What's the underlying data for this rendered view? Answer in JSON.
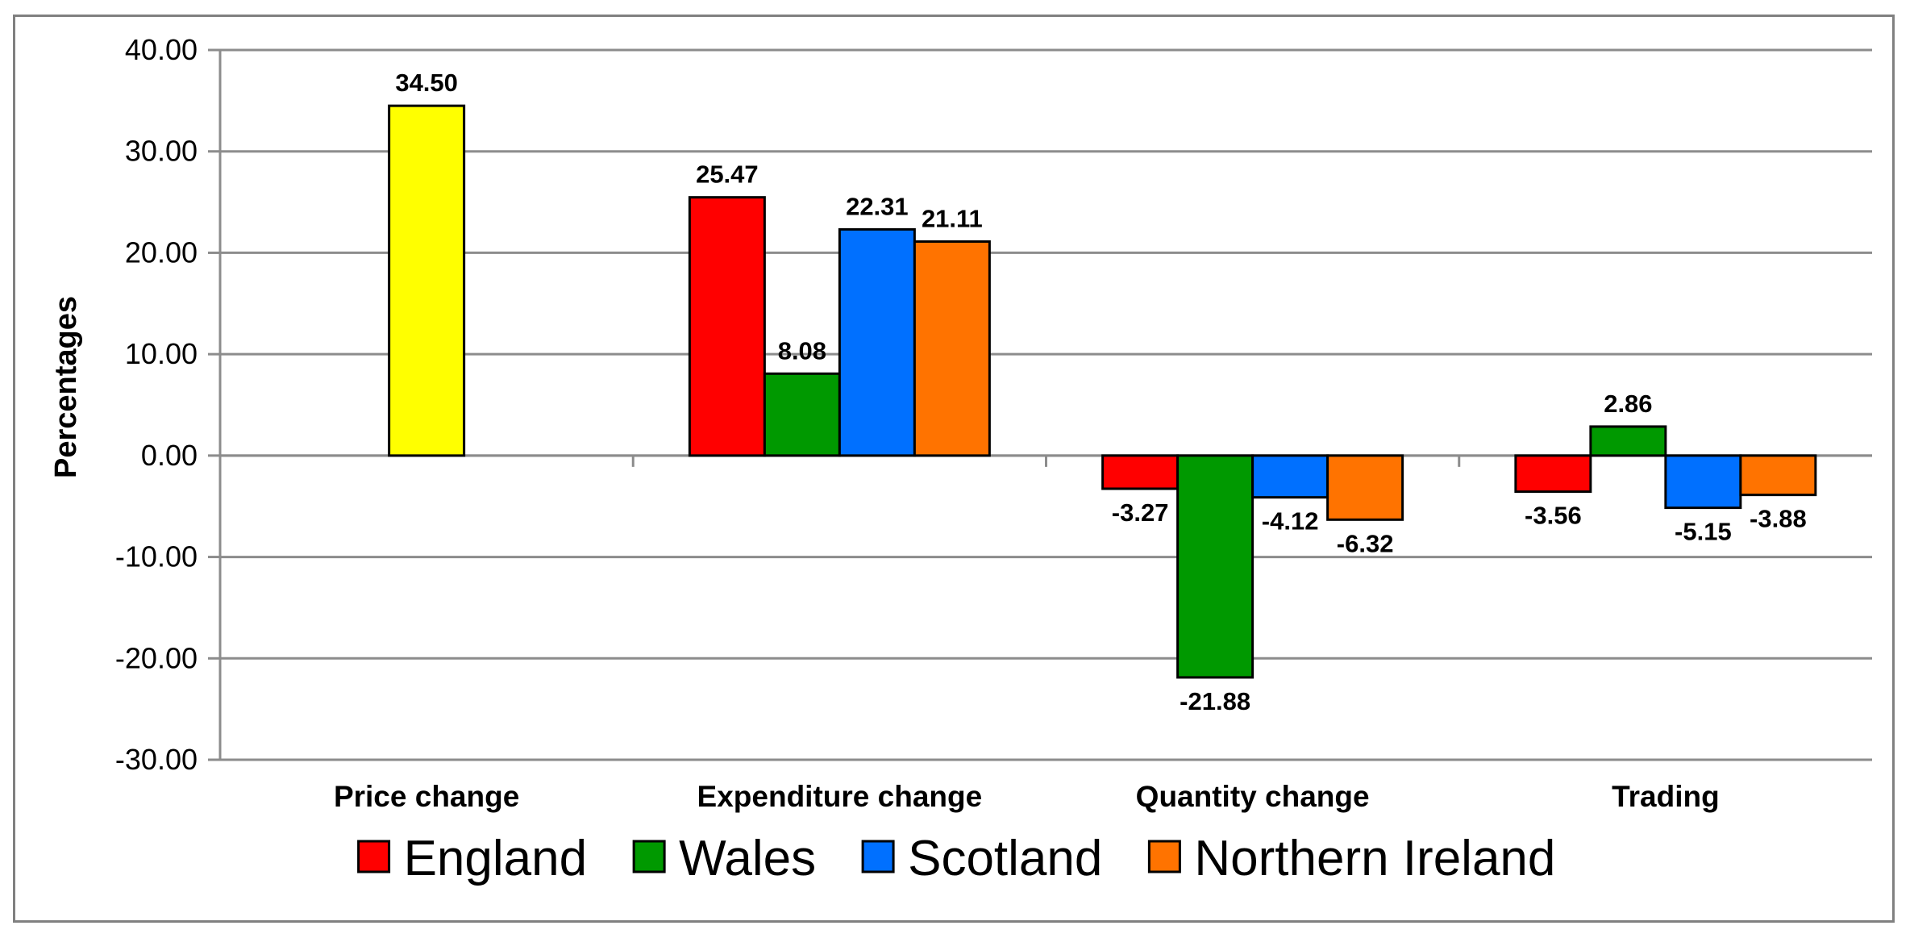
{
  "chart_data": {
    "type": "bar",
    "title": "",
    "xlabel": "",
    "ylabel": "Percentages",
    "ylim": [
      -30,
      40
    ],
    "yticks": [
      40,
      30,
      20,
      10,
      0,
      -10,
      -20,
      -30
    ],
    "ytick_labels": [
      "40.00",
      "30.00",
      "20.00",
      "10.00",
      "0.00",
      "-10.00",
      "-20.00",
      "-30.00"
    ],
    "grid": true,
    "categories": [
      "Price change",
      "Expenditure change",
      "Quantity change",
      "Trading"
    ],
    "series": [
      {
        "name": "England",
        "color": "#ff0000",
        "values": [
          null,
          25.47,
          -3.27,
          -3.56
        ],
        "labels": [
          null,
          "25.47",
          "-3.27",
          "-3.56"
        ]
      },
      {
        "name": "Wales",
        "color": "#009900",
        "values": [
          null,
          8.08,
          -21.88,
          2.86
        ],
        "labels": [
          null,
          "8.08",
          "-21.88",
          "2.86"
        ]
      },
      {
        "name": "Scotland",
        "color": "#0070ff",
        "values": [
          null,
          22.31,
          -4.12,
          -5.15
        ],
        "labels": [
          null,
          "22.31",
          "-4.12",
          "-5.15"
        ]
      },
      {
        "name": "Northern Ireland",
        "color": "#ff7300",
        "values": [
          null,
          21.11,
          -6.32,
          -3.88
        ],
        "labels": [
          null,
          "21.11",
          "-6.32",
          "-3.88"
        ]
      }
    ],
    "extra_bars": [
      {
        "category": "Price change",
        "value": 34.5,
        "label": "34.50",
        "color": "#ffff00",
        "legend": false
      }
    ],
    "legend_position": "bottom"
  }
}
